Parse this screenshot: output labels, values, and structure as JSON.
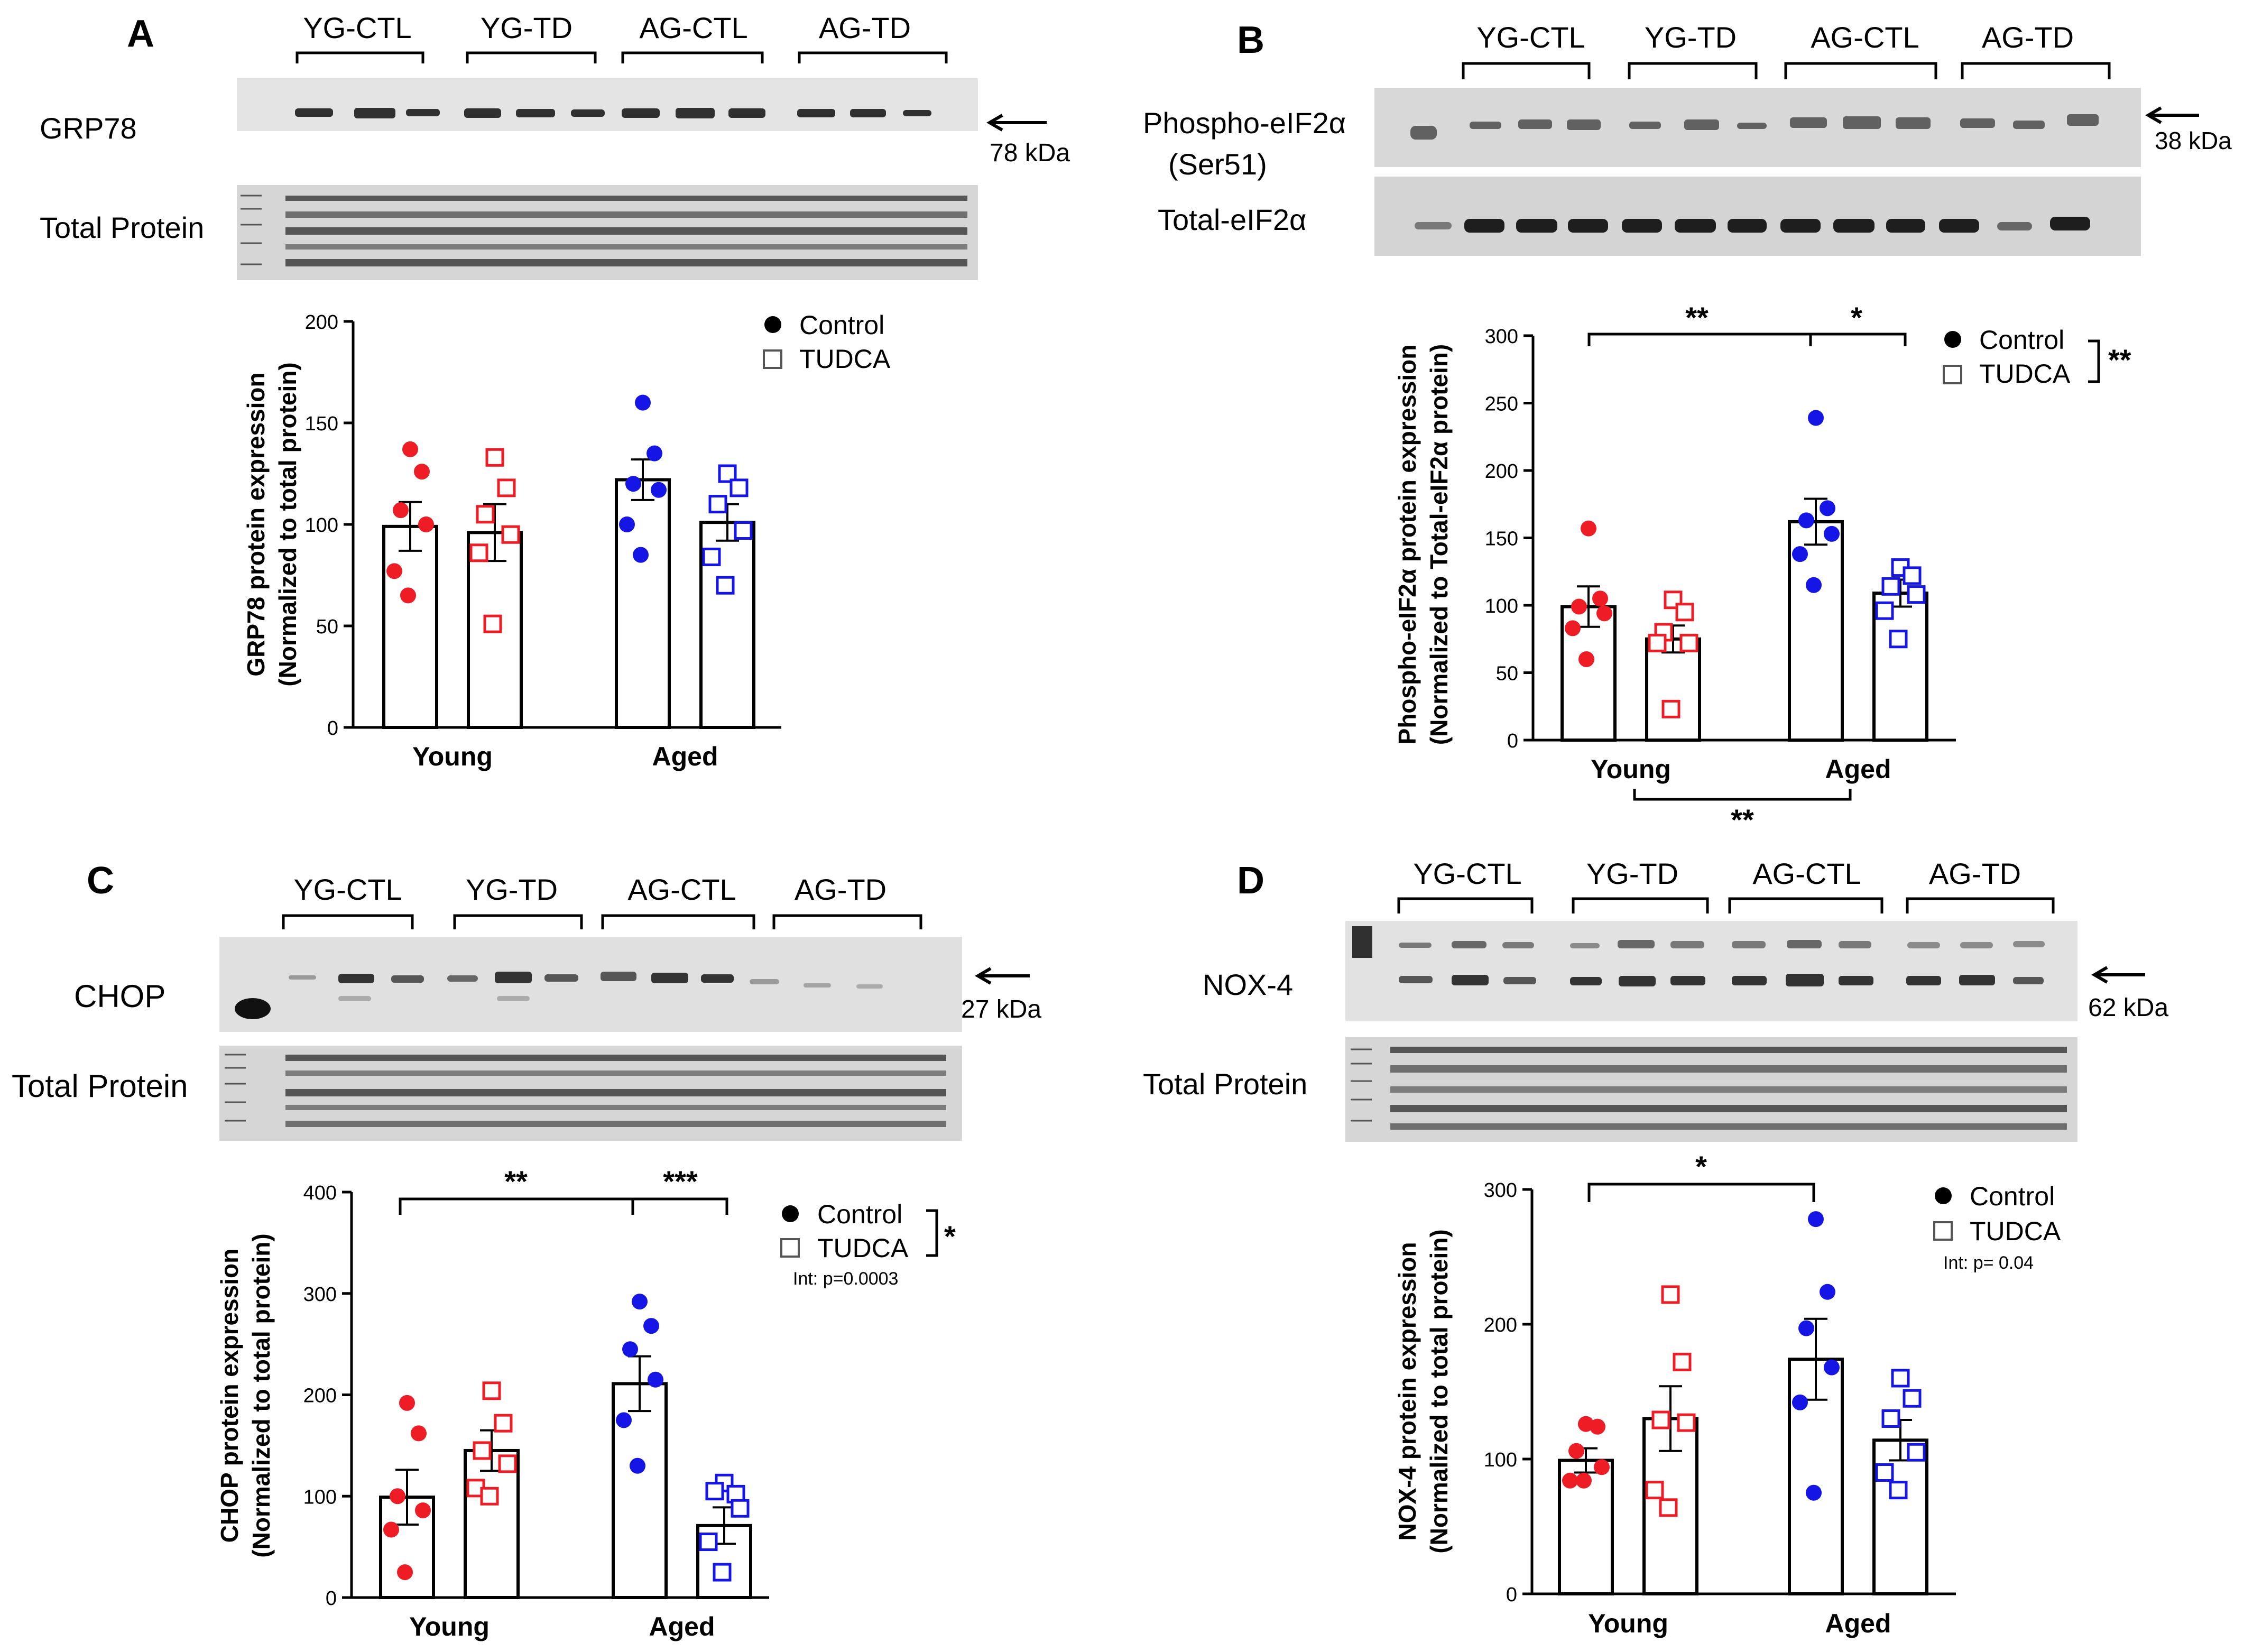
{
  "figure": {
    "legend": {
      "control": "Control",
      "tudca": "TUDCA"
    },
    "groups": [
      "Young",
      "Aged"
    ],
    "lane_groups": [
      "YG-CTL",
      "YG-TD",
      "AG-CTL",
      "AG-TD"
    ],
    "colors": {
      "young": "#ee1c25",
      "aged": "#1515e6",
      "bar": "#000000",
      "blot_bg": "#e2e2e2",
      "band": "#2a2a2a"
    }
  },
  "chart_data": [
    {
      "panel": "A",
      "type": "bar",
      "blot_rows": [
        "GRP78",
        "Total Protein"
      ],
      "marker": "78 kDa",
      "ylabel_line1": "GRP78 protein expression",
      "ylabel_line2": "(Normalized to total protein)",
      "ylim": [
        0,
        200
      ],
      "yticks": [
        "0",
        "50",
        "100",
        "150",
        "200"
      ],
      "categories": [
        "Young",
        "Aged"
      ],
      "series": [
        {
          "name": "Control",
          "means": [
            99,
            122
          ],
          "sems": [
            12,
            10
          ],
          "points": [
            [
              137,
              126,
              107,
              100,
              77,
              65
            ],
            [
              160,
              135,
              120,
              117,
              100,
              85
            ]
          ]
        },
        {
          "name": "TUDCA",
          "means": [
            96,
            101
          ],
          "sems": [
            14,
            9
          ],
          "points": [
            [
              133,
              118,
              105,
              95,
              86,
              51
            ],
            [
              125,
              118,
              110,
              97,
              84,
              70
            ]
          ]
        }
      ],
      "significance": [],
      "annotation": ""
    },
    {
      "panel": "B",
      "type": "bar",
      "blot_rows": [
        "Phospho-eIF2α",
        "(Ser51)",
        "Total-eIF2α"
      ],
      "marker": "38 kDa",
      "ylabel_line1": "Phospho-eIF2α protein expression",
      "ylabel_line2": "(Normalized to Total-eIF2α protein)",
      "ylim": [
        0,
        300
      ],
      "yticks": [
        "0",
        "50",
        "100",
        "150",
        "200",
        "250",
        "300"
      ],
      "categories": [
        "Young",
        "Aged"
      ],
      "series": [
        {
          "name": "Control",
          "means": [
            99,
            162
          ],
          "sems": [
            15,
            17
          ],
          "points": [
            [
              157,
              105,
              99,
              94,
              83,
              60
            ],
            [
              239,
              172,
              163,
              153,
              138,
              115
            ]
          ]
        },
        {
          "name": "TUDCA",
          "means": [
            75,
            109
          ],
          "sems": [
            10,
            10
          ],
          "points": [
            [
              104,
              95,
              80,
              72,
              72,
              23
            ],
            [
              128,
              122,
              114,
              108,
              96,
              75
            ]
          ]
        }
      ],
      "significance": [
        "**",
        "*",
        "**",
        "**"
      ],
      "annotation": ""
    },
    {
      "panel": "C",
      "type": "bar",
      "blot_rows": [
        "CHOP",
        "Total Protein"
      ],
      "marker": "27 kDa",
      "ylabel_line1": "CHOP protein expression",
      "ylabel_line2": "(Normalized to total protein)",
      "ylim": [
        0,
        400
      ],
      "yticks": [
        "0",
        "100",
        "200",
        "300",
        "400"
      ],
      "categories": [
        "Young",
        "Aged"
      ],
      "series": [
        {
          "name": "Control",
          "means": [
            99,
            211
          ],
          "sems": [
            27,
            27
          ],
          "points": [
            [
              192,
              162,
              100,
              86,
              67,
              25
            ],
            [
              292,
              268,
              245,
              215,
              175,
              130
            ]
          ]
        },
        {
          "name": "TUDCA",
          "means": [
            145,
            71
          ],
          "sems": [
            20,
            18
          ],
          "points": [
            [
              204,
              172,
              145,
              132,
              108,
              100
            ],
            [
              113,
              102,
              105,
              88,
              55,
              25
            ]
          ]
        }
      ],
      "significance": [
        "**",
        "***",
        "*"
      ],
      "annotation": "Int: p=0.0003"
    },
    {
      "panel": "D",
      "type": "bar",
      "blot_rows": [
        "NOX-4",
        "Total Protein"
      ],
      "marker": "62 kDa",
      "ylabel_line1": "NOX-4 protein expression",
      "ylabel_line2": "(Normalized to total protein)",
      "ylim": [
        0,
        300
      ],
      "yticks": [
        "0",
        "100",
        "200",
        "300"
      ],
      "categories": [
        "Young",
        "Aged"
      ],
      "series": [
        {
          "name": "Control",
          "means": [
            99,
            174
          ],
          "sems": [
            9,
            30
          ],
          "points": [
            [
              126,
              124,
              106,
              94,
              84,
              84
            ],
            [
              278,
              224,
              197,
              168,
              142,
              75
            ]
          ]
        },
        {
          "name": "TUDCA",
          "means": [
            130,
            114
          ],
          "sems": [
            24,
            15
          ],
          "points": [
            [
              222,
              172,
              129,
              127,
              77,
              64
            ],
            [
              160,
              145,
              130,
              105,
              90,
              77
            ]
          ]
        }
      ],
      "significance": [
        "*"
      ],
      "annotation": "Int: p= 0.04"
    }
  ]
}
